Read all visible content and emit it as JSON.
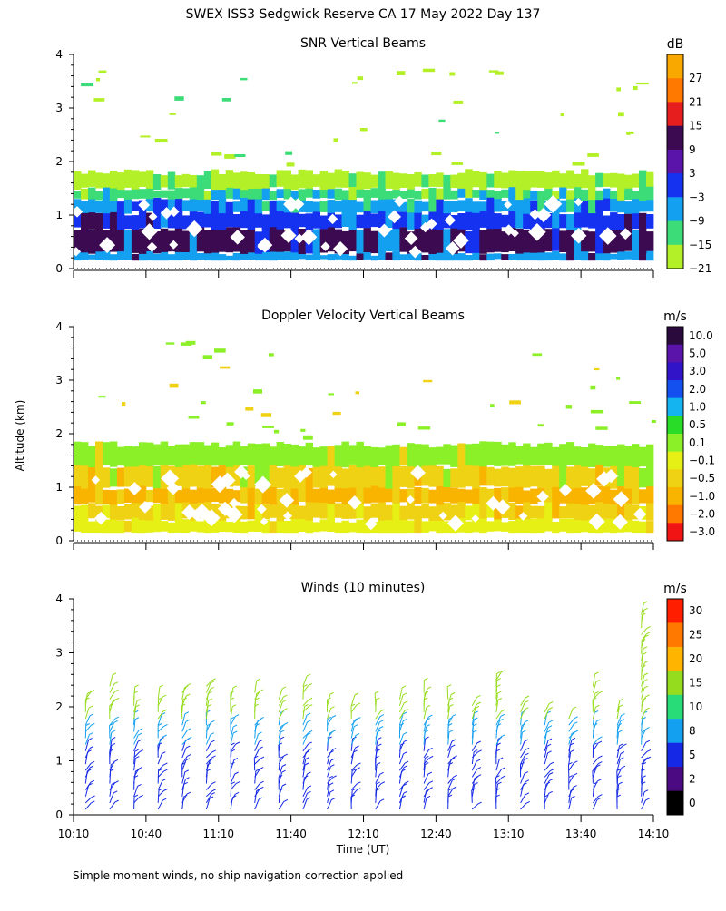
{
  "figure_title": "SWEX ISS3 Sedgwick Reserve CA  17 May 2022 Day 137",
  "footnote": "Simple moment winds, no ship navigation correction applied",
  "shared": {
    "ylabel": "Altitude (km)",
    "xlabel": "Time (UT)",
    "x_ticks": [
      "10:10",
      "10:40",
      "11:10",
      "11:40",
      "12:10",
      "12:40",
      "13:10",
      "13:40",
      "14:10"
    ],
    "y_ticks": [
      "0",
      "1",
      "2",
      "3",
      "4"
    ],
    "x_range_hours": [
      10.1667,
      14.1667
    ],
    "ylim_km": [
      0,
      4
    ]
  },
  "chart_data": [
    {
      "type": "heatmap",
      "title": "SNR Vertical Beams",
      "colorbar_unit": "dB",
      "colorbar_labels": [
        "27",
        "21",
        "15",
        "9",
        "3",
        "−3",
        "−9",
        "−15",
        "−21"
      ],
      "colorbar_colors": [
        "#f9a800",
        "#ff7800",
        "#e61e1e",
        "#3c0a50",
        "#5a14aa",
        "#1432f0",
        "#14a0f0",
        "#3cdc78",
        "#b4f028"
      ],
      "layers": [
        {
          "from_km": 0.15,
          "to_km": 0.3,
          "band": "−9"
        },
        {
          "from_km": 0.3,
          "to_km": 0.75,
          "band": "9"
        },
        {
          "from_km": 0.75,
          "to_km": 1.05,
          "band": "−3"
        },
        {
          "from_km": 1.05,
          "to_km": 1.3,
          "band": "−9"
        },
        {
          "from_km": 1.3,
          "to_km": 1.5,
          "band": "−15"
        },
        {
          "from_km": 1.5,
          "to_km": 1.8,
          "band": "−21"
        }
      ]
    },
    {
      "type": "heatmap",
      "title": "Doppler Velocity Vertical Beams",
      "colorbar_unit": "m/s",
      "colorbar_labels": [
        "10.0",
        "5.0",
        "3.0",
        "2.0",
        "1.0",
        "0.5",
        "0.1",
        "−0.1",
        "−0.5",
        "−1.0",
        "−2.0",
        "−3.0"
      ],
      "colorbar_colors": [
        "#2a0a3c",
        "#5a14aa",
        "#3214c8",
        "#1450f0",
        "#14b4f0",
        "#28dc28",
        "#8cf028",
        "#e6f014",
        "#f0d214",
        "#f9b400",
        "#ff7800",
        "#f01414"
      ],
      "layers": [
        {
          "from_km": 0.15,
          "to_km": 0.4,
          "band": "−0.1"
        },
        {
          "from_km": 0.4,
          "to_km": 0.7,
          "band": "−0.5"
        },
        {
          "from_km": 0.7,
          "to_km": 1.0,
          "band": "−1.0"
        },
        {
          "from_km": 1.0,
          "to_km": 1.4,
          "band": "−0.5"
        },
        {
          "from_km": 1.4,
          "to_km": 1.8,
          "band": "0.1"
        }
      ]
    },
    {
      "type": "wind-barbs",
      "title": "Winds (10 minutes)",
      "colorbar_unit": "m/s",
      "colorbar_labels": [
        "30",
        "25",
        "20",
        "15",
        "10",
        "8",
        "5",
        "2",
        "0"
      ],
      "colorbar_colors": [
        "#ff1e00",
        "#ff7800",
        "#ffb400",
        "#96dc1e",
        "#28dc78",
        "#14a0f0",
        "#1428e6",
        "#4b0a82",
        "#000000"
      ],
      "profile_times": [
        "10:15",
        "10:25",
        "10:35",
        "10:45",
        "10:55",
        "11:05",
        "11:15",
        "11:25",
        "11:35",
        "11:45",
        "11:55",
        "12:05",
        "12:15",
        "12:25",
        "12:35",
        "12:45",
        "12:55",
        "13:05",
        "13:15",
        "13:25",
        "13:35",
        "13:45",
        "13:55",
        "14:05"
      ],
      "max_altitude_km": [
        2.2,
        2.5,
        2.2,
        2.2,
        2.3,
        2.4,
        2.2,
        2.3,
        2.2,
        2.4,
        2.1,
        2.1,
        2.1,
        2.2,
        2.3,
        2.2,
        2.1,
        2.6,
        2.1,
        2.0,
        1.9,
        2.4,
        2.0,
        3.8
      ],
      "speed_by_altitude": [
        {
          "from_km": 0.0,
          "to_km": 1.2,
          "speed": 5
        },
        {
          "from_km": 1.2,
          "to_km": 1.7,
          "speed": 8
        },
        {
          "from_km": 1.7,
          "to_km": 4.0,
          "speed": 15
        }
      ]
    }
  ]
}
